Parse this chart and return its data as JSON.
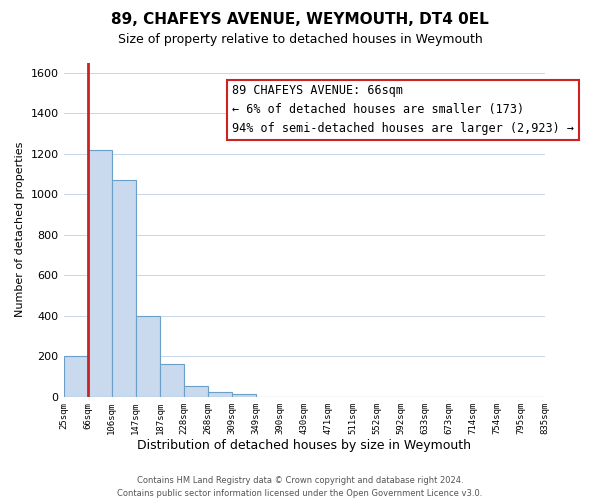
{
  "title": "89, CHAFEYS AVENUE, WEYMOUTH, DT4 0EL",
  "subtitle": "Size of property relative to detached houses in Weymouth",
  "xlabel": "Distribution of detached houses by size in Weymouth",
  "ylabel": "Number of detached properties",
  "bin_labels": [
    "25sqm",
    "66sqm",
    "106sqm",
    "147sqm",
    "187sqm",
    "228sqm",
    "268sqm",
    "309sqm",
    "349sqm",
    "390sqm",
    "430sqm",
    "471sqm",
    "511sqm",
    "552sqm",
    "592sqm",
    "633sqm",
    "673sqm",
    "714sqm",
    "754sqm",
    "795sqm",
    "835sqm"
  ],
  "bar_heights": [
    200,
    1220,
    1070,
    400,
    160,
    55,
    25,
    15,
    0,
    0,
    0,
    0,
    0,
    0,
    0,
    0,
    0,
    0,
    0,
    0
  ],
  "bar_color_face": "#c9d9ee",
  "bar_color_edge": "#6aa0c7",
  "highlight_color": "#cc2222",
  "highlight_bar_index": 1,
  "ylim": [
    0,
    1650
  ],
  "yticks": [
    0,
    200,
    400,
    600,
    800,
    1000,
    1200,
    1400,
    1600
  ],
  "annotation_title": "89 CHAFEYS AVENUE: 66sqm",
  "annotation_line1": "← 6% of detached houses are smaller (173)",
  "annotation_line2": "94% of semi-detached houses are larger (2,923) →",
  "footer_line1": "Contains HM Land Registry data © Crown copyright and database right 2024.",
  "footer_line2": "Contains public sector information licensed under the Open Government Licence v3.0.",
  "bg_color": "#ffffff",
  "grid_color": "#c8d4e8",
  "annotation_box_edge": "#cc2222"
}
